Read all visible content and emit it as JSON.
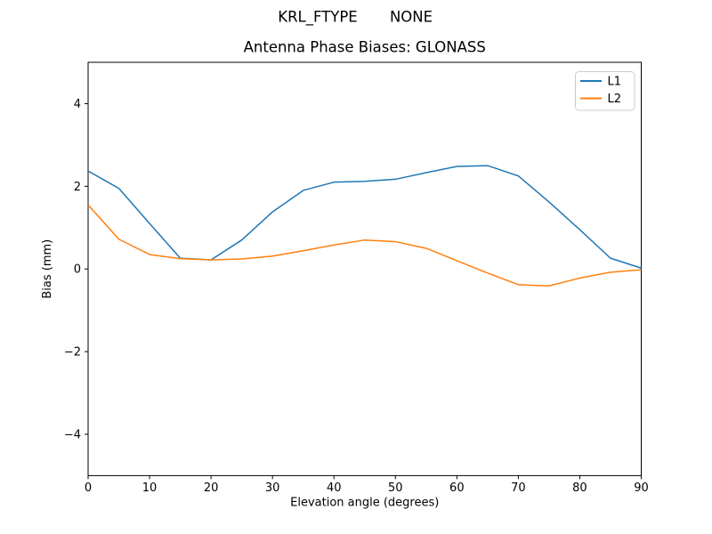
{
  "window": {
    "background": "#ffffff",
    "text_color": "#000000"
  },
  "header": {
    "suptitle_left": "KRL_FTYPE",
    "suptitle_right": "NONE"
  },
  "chart_data": {
    "type": "line",
    "title": "Antenna Phase Biases: GLONASS",
    "xlabel": "Elevation angle (degrees)",
    "ylabel": "Bias (mm)",
    "xlim": [
      0,
      90
    ],
    "ylim": [
      -5,
      5
    ],
    "xticks": [
      0,
      10,
      20,
      30,
      40,
      50,
      60,
      70,
      80,
      90
    ],
    "yticks": [
      -4,
      -2,
      0,
      2,
      4
    ],
    "ytick_labels": [
      "−4",
      "−2",
      "0",
      "2",
      "4"
    ],
    "grid": false,
    "legend_position": "upper right",
    "x": [
      0,
      5,
      10,
      15,
      20,
      25,
      30,
      35,
      40,
      45,
      50,
      55,
      60,
      65,
      70,
      75,
      80,
      85,
      90
    ],
    "series": [
      {
        "name": "L1",
        "color": "#1f77b4",
        "values": [
          2.37,
          1.95,
          1.1,
          0.26,
          0.22,
          0.7,
          1.38,
          1.9,
          2.1,
          2.12,
          2.17,
          2.33,
          2.48,
          2.5,
          2.25,
          1.62,
          0.95,
          0.26,
          0.02
        ]
      },
      {
        "name": "L2",
        "color": "#ff7f0e",
        "values": [
          1.55,
          0.72,
          0.35,
          0.25,
          0.22,
          0.24,
          0.31,
          0.44,
          0.58,
          0.7,
          0.66,
          0.5,
          0.2,
          -0.1,
          -0.38,
          -0.41,
          -0.22,
          -0.08,
          -0.02
        ]
      }
    ],
    "legend": {
      "entries": [
        "L1",
        "L2"
      ],
      "border_color": "#cccccc",
      "background": "#ffffff"
    },
    "axis_color": "#000000"
  }
}
